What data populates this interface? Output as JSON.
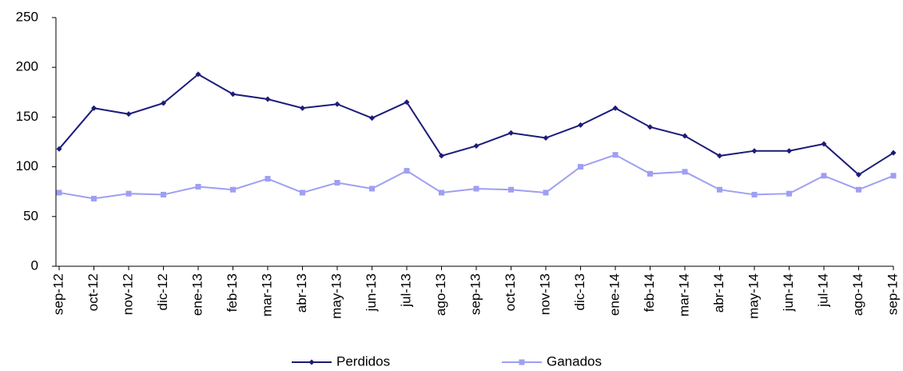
{
  "chart_data": {
    "type": "line",
    "categories": [
      "sep-12",
      "oct-12",
      "nov-12",
      "dic-12",
      "ene-13",
      "feb-13",
      "mar-13",
      "abr-13",
      "may-13",
      "jun-13",
      "jul-13",
      "ago-13",
      "sep-13",
      "oct-13",
      "nov-13",
      "dic-13",
      "ene-14",
      "feb-14",
      "mar-14",
      "abr-14",
      "may-14",
      "jun-14",
      "jul-14",
      "ago-14",
      "sep-14"
    ],
    "series": [
      {
        "name": "Perdidos",
        "color": "#1c1c78",
        "marker": "diamond",
        "values": [
          118,
          159,
          153,
          164,
          193,
          173,
          168,
          159,
          163,
          149,
          165,
          111,
          121,
          134,
          129,
          142,
          159,
          140,
          131,
          111,
          116,
          116,
          123,
          92,
          114
        ]
      },
      {
        "name": "Ganados",
        "color": "#9f9ff2",
        "marker": "square",
        "values": [
          74,
          68,
          73,
          72,
          80,
          77,
          88,
          74,
          84,
          78,
          96,
          74,
          78,
          77,
          74,
          100,
          112,
          93,
          95,
          77,
          72,
          73,
          91,
          77,
          91
        ]
      }
    ],
    "ylim": [
      0,
      250
    ],
    "yticks": [
      0,
      50,
      100,
      150,
      200,
      250
    ],
    "grid": false,
    "legend": "bottom"
  }
}
